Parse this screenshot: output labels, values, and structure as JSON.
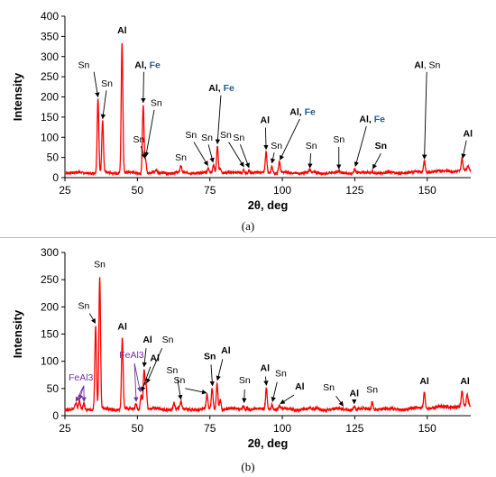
{
  "chart_data": [
    {
      "type": "line",
      "panel_label": "(a)",
      "xlabel": "2θ, deg",
      "ylabel": "Intensity",
      "xlim": [
        25,
        165
      ],
      "ylim": [
        0,
        400
      ],
      "xticks": [
        25,
        50,
        75,
        100,
        125,
        150
      ],
      "yticks": [
        0,
        50,
        100,
        150,
        200,
        250,
        300,
        350,
        400
      ],
      "grid": false,
      "line_color": "#ff0000",
      "baseline": 12,
      "peaks": [
        {
          "x": 36.4,
          "y": 195
        },
        {
          "x": 38.0,
          "y": 140
        },
        {
          "x": 44.7,
          "y": 335
        },
        {
          "x": 52.0,
          "y": 180
        },
        {
          "x": 52.8,
          "y": 45
        },
        {
          "x": 56.5,
          "y": 18
        },
        {
          "x": 65.0,
          "y": 28
        },
        {
          "x": 74.5,
          "y": 22
        },
        {
          "x": 76.3,
          "y": 32
        },
        {
          "x": 77.6,
          "y": 78
        },
        {
          "x": 78.6,
          "y": 25
        },
        {
          "x": 86.7,
          "y": 20
        },
        {
          "x": 88.5,
          "y": 18
        },
        {
          "x": 94.4,
          "y": 65
        },
        {
          "x": 96.4,
          "y": 30
        },
        {
          "x": 99.0,
          "y": 38
        },
        {
          "x": 109.5,
          "y": 18
        },
        {
          "x": 119.5,
          "y": 16
        },
        {
          "x": 125.0,
          "y": 22
        },
        {
          "x": 131.0,
          "y": 16
        },
        {
          "x": 149.0,
          "y": 40
        },
        {
          "x": 162.0,
          "y": 42
        },
        {
          "x": 164.0,
          "y": 22
        }
      ],
      "annotations": [
        {
          "parts": [
            {
              "t": "Sn",
              "b": false,
              "c": "#000000"
            }
          ],
          "text_x": 31.5,
          "text_y": 272,
          "arrow": [
            35.0,
            262,
            36.4,
            200
          ]
        },
        {
          "parts": [
            {
              "t": "Sn",
              "b": false,
              "c": "#000000"
            }
          ],
          "text_x": 39.5,
          "text_y": 226,
          "arrow": [
            39.3,
            216,
            38.0,
            146
          ]
        },
        {
          "parts": [
            {
              "t": "Al",
              "b": true,
              "c": "#000000"
            }
          ],
          "text_x": 44.7,
          "text_y": 358,
          "arrow": null
        },
        {
          "parts": [
            {
              "t": "Al",
              "b": true,
              "c": "#000000"
            },
            {
              "t": ", ",
              "b": true,
              "c": "#000000"
            },
            {
              "t": "Fe",
              "b": true,
              "c": "#1f5c9a"
            }
          ],
          "text_x": 53.5,
          "text_y": 272,
          "arrow": [
            52.2,
            262,
            52.0,
            186
          ]
        },
        {
          "parts": [
            {
              "t": "Sn",
              "b": false,
              "c": "#000000"
            }
          ],
          "text_x": 56.5,
          "text_y": 178,
          "arrow": [
            55.8,
            168,
            52.9,
            52
          ]
        },
        {
          "parts": [
            {
              "t": "Sn",
              "b": false,
              "c": "#000000"
            }
          ],
          "text_x": 50.5,
          "text_y": 87,
          "arrow": [
            51.2,
            78,
            52.6,
            48
          ]
        },
        {
          "parts": [
            {
              "t": "Sn",
              "b": false,
              "c": "#000000"
            }
          ],
          "text_x": 65.0,
          "text_y": 43,
          "arrow": null
        },
        {
          "parts": [
            {
              "t": "Sn",
              "b": false,
              "c": "#000000"
            }
          ],
          "text_x": 68.5,
          "text_y": 98,
          "arrow": [
            69.5,
            88,
            74.3,
            30
          ]
        },
        {
          "parts": [
            {
              "t": "Sn",
              "b": false,
              "c": "#000000"
            }
          ],
          "text_x": 74.0,
          "text_y": 92,
          "arrow": [
            74.5,
            82,
            76.1,
            38
          ]
        },
        {
          "parts": [
            {
              "t": "Al",
              "b": true,
              "c": "#000000"
            },
            {
              "t": ", ",
              "b": true,
              "c": "#000000"
            },
            {
              "t": "Fe",
              "b": true,
              "c": "#1f5c9a"
            }
          ],
          "text_x": 79.0,
          "text_y": 214,
          "arrow": [
            78.8,
            204,
            77.6,
            84
          ]
        },
        {
          "parts": [
            {
              "t": "Sn",
              "b": false,
              "c": "#000000"
            }
          ],
          "text_x": 80.5,
          "text_y": 98,
          "arrow": [
            81.5,
            88,
            86.7,
            27
          ]
        },
        {
          "parts": [
            {
              "t": "Sn",
              "b": false,
              "c": "#000000"
            }
          ],
          "text_x": 85.0,
          "text_y": 92,
          "arrow": [
            85.5,
            82,
            88.5,
            25
          ]
        },
        {
          "parts": [
            {
              "t": "Al",
              "b": true,
              "c": "#000000"
            }
          ],
          "text_x": 94.0,
          "text_y": 135,
          "arrow": [
            94.2,
            124,
            94.4,
            70
          ]
        },
        {
          "parts": [
            {
              "t": "Sn",
              "b": false,
              "c": "#000000"
            }
          ],
          "text_x": 98.0,
          "text_y": 72,
          "arrow": [
            97.2,
            62,
            96.4,
            36
          ]
        },
        {
          "parts": [
            {
              "t": "Al",
              "b": true,
              "c": "#000000"
            },
            {
              "t": ", ",
              "b": true,
              "c": "#000000"
            },
            {
              "t": "Fe",
              "b": true,
              "c": "#1f5c9a"
            }
          ],
          "text_x": 107.0,
          "text_y": 155,
          "arrow": [
            106.0,
            145,
            99.2,
            44
          ]
        },
        {
          "parts": [
            {
              "t": "Sn",
              "b": false,
              "c": "#000000"
            }
          ],
          "text_x": 110.0,
          "text_y": 72,
          "arrow": [
            109.8,
            60,
            109.5,
            24
          ]
        },
        {
          "parts": [
            {
              "t": "Sn",
              "b": false,
              "c": "#000000"
            }
          ],
          "text_x": 119.5,
          "text_y": 87,
          "arrow": [
            119.5,
            76,
            119.5,
            22
          ]
        },
        {
          "parts": [
            {
              "t": "Al",
              "b": true,
              "c": "#000000"
            },
            {
              "t": ", ",
              "b": true,
              "c": "#000000"
            },
            {
              "t": "Fe",
              "b": true,
              "c": "#1f5c9a"
            }
          ],
          "text_x": 131.0,
          "text_y": 137,
          "arrow": [
            129.0,
            127,
            125.2,
            28
          ]
        },
        {
          "parts": [
            {
              "t": "Sn",
              "b": true,
              "c": "#000000"
            }
          ],
          "text_x": 134.0,
          "text_y": 72,
          "arrow": [
            134.0,
            60,
            131.2,
            22
          ]
        },
        {
          "parts": [
            {
              "t": "Al",
              "b": true,
              "c": "#000000"
            },
            {
              "t": ", Sn",
              "b": false,
              "c": "#000000"
            }
          ],
          "text_x": 150.0,
          "text_y": 272,
          "arrow": [
            149.8,
            262,
            149.0,
            46
          ]
        },
        {
          "parts": [
            {
              "t": "Al",
              "b": true,
              "c": "#000000"
            }
          ],
          "text_x": 164.0,
          "text_y": 102,
          "arrow": [
            163.5,
            92,
            162.2,
            48
          ]
        }
      ]
    },
    {
      "type": "line",
      "panel_label": "(b)",
      "xlabel": "2θ, deg",
      "ylabel": "Intensity",
      "xlim": [
        25,
        165
      ],
      "ylim": [
        0,
        300
      ],
      "xticks": [
        25,
        50,
        75,
        100,
        125,
        150
      ],
      "yticks": [
        0,
        50,
        100,
        150,
        200,
        250,
        300
      ],
      "grid": false,
      "line_color": "#ff0000",
      "baseline": 12,
      "peaks": [
        {
          "x": 28.8,
          "y": 22
        },
        {
          "x": 30.0,
          "y": 26
        },
        {
          "x": 31.5,
          "y": 22
        },
        {
          "x": 35.6,
          "y": 165
        },
        {
          "x": 37.0,
          "y": 255
        },
        {
          "x": 44.8,
          "y": 142
        },
        {
          "x": 49.5,
          "y": 22
        },
        {
          "x": 51.3,
          "y": 40
        },
        {
          "x": 52.3,
          "y": 85
        },
        {
          "x": 53.0,
          "y": 55
        },
        {
          "x": 62.6,
          "y": 24
        },
        {
          "x": 65.0,
          "y": 25
        },
        {
          "x": 74.0,
          "y": 38
        },
        {
          "x": 75.8,
          "y": 50
        },
        {
          "x": 77.5,
          "y": 60
        },
        {
          "x": 78.6,
          "y": 30
        },
        {
          "x": 86.5,
          "y": 20
        },
        {
          "x": 88.0,
          "y": 16
        },
        {
          "x": 94.5,
          "y": 52
        },
        {
          "x": 96.4,
          "y": 22
        },
        {
          "x": 99.0,
          "y": 18
        },
        {
          "x": 112.0,
          "y": 14
        },
        {
          "x": 124.8,
          "y": 18
        },
        {
          "x": 131.0,
          "y": 26
        },
        {
          "x": 149.0,
          "y": 42
        },
        {
          "x": 162.0,
          "y": 40
        },
        {
          "x": 163.8,
          "y": 32
        }
      ],
      "annotations": [
        {
          "parts": [
            {
              "t": "Sn",
              "b": false,
              "c": "#000000"
            }
          ],
          "text_x": 31.5,
          "text_y": 196,
          "arrow": [
            33.5,
            188,
            35.5,
            170
          ]
        },
        {
          "parts": [
            {
              "t": "Sn",
              "b": false,
              "c": "#000000"
            }
          ],
          "text_x": 37.0,
          "text_y": 273,
          "arrow": null
        },
        {
          "parts": [
            {
              "t": "Al",
              "b": true,
              "c": "#000000"
            }
          ],
          "text_x": 44.8,
          "text_y": 158,
          "arrow": null
        },
        {
          "parts": [
            {
              "t": "FeAl3",
              "b": false,
              "c": "#7030a0"
            }
          ],
          "text_x": 30.5,
          "text_y": 65,
          "arrow": null
        },
        {
          "parts": [
            {
              "t": "FeAl3",
              "b": false,
              "c": "#7030a0"
            }
          ],
          "text_x": 48.0,
          "text_y": 106,
          "arrow": null
        },
        {
          "parts": [
            {
              "t": "Al",
              "b": true,
              "c": "#000000"
            }
          ],
          "text_x": 53.5,
          "text_y": 134,
          "arrow": [
            53.0,
            124,
            52.3,
            90
          ]
        },
        {
          "parts": [
            {
              "t": "Sn",
              "b": false,
              "c": "#000000"
            }
          ],
          "text_x": 60.5,
          "text_y": 134,
          "arrow": [
            58.5,
            124,
            53.2,
            60
          ]
        },
        {
          "parts": [
            {
              "t": "Al",
              "b": true,
              "c": "#000000"
            }
          ],
          "text_x": 56.0,
          "text_y": 100,
          "arrow": [
            54.5,
            90,
            51.5,
            45
          ]
        },
        {
          "parts": [
            {
              "t": "Sn",
              "b": false,
              "c": "#000000"
            }
          ],
          "text_x": 62.0,
          "text_y": 78,
          "arrow": [
            63.8,
            68,
            65.0,
            30
          ]
        },
        {
          "parts": [
            {
              "t": "Sn",
              "b": false,
              "c": "#000000"
            }
          ],
          "text_x": 64.5,
          "text_y": 60,
          "arrow": [
            66.5,
            50,
            73.8,
            42
          ]
        },
        {
          "parts": [
            {
              "t": "Sn",
              "b": true,
              "c": "#000000"
            }
          ],
          "text_x": 75.0,
          "text_y": 104,
          "arrow": [
            75.4,
            94,
            75.9,
            55
          ]
        },
        {
          "parts": [
            {
              "t": "Al",
              "b": true,
              "c": "#000000"
            }
          ],
          "text_x": 80.5,
          "text_y": 114,
          "arrow": [
            79.4,
            104,
            77.6,
            65
          ]
        },
        {
          "parts": [
            {
              "t": "Sn",
              "b": false,
              "c": "#000000"
            }
          ],
          "text_x": 87.0,
          "text_y": 60,
          "arrow": [
            87.0,
            48,
            86.8,
            24
          ]
        },
        {
          "parts": [
            {
              "t": "Al",
              "b": true,
              "c": "#000000"
            }
          ],
          "text_x": 94.0,
          "text_y": 82,
          "arrow": [
            94.2,
            72,
            94.5,
            56
          ]
        },
        {
          "parts": [
            {
              "t": "Sn",
              "b": false,
              "c": "#000000"
            }
          ],
          "text_x": 99.5,
          "text_y": 72,
          "arrow": [
            98.2,
            62,
            96.6,
            26
          ]
        },
        {
          "parts": [
            {
              "t": "Al",
              "b": true,
              "c": "#000000"
            }
          ],
          "text_x": 106.0,
          "text_y": 48,
          "arrow": [
            104.0,
            38,
            99.3,
            22
          ]
        },
        {
          "parts": [
            {
              "t": "Sn",
              "b": false,
              "c": "#000000"
            }
          ],
          "text_x": 116.0,
          "text_y": 46,
          "arrow": [
            118.5,
            36,
            121.0,
            18
          ]
        },
        {
          "parts": [
            {
              "t": "Al",
              "b": true,
              "c": "#000000"
            }
          ],
          "text_x": 124.8,
          "text_y": 36,
          "arrow": [
            124.8,
            28,
            124.8,
            22
          ]
        },
        {
          "parts": [
            {
              "t": "Sn",
              "b": false,
              "c": "#000000"
            }
          ],
          "text_x": 131.0,
          "text_y": 42,
          "arrow": null
        },
        {
          "parts": [
            {
              "t": "Al",
              "b": true,
              "c": "#000000"
            }
          ],
          "text_x": 149.0,
          "text_y": 58,
          "arrow": null
        },
        {
          "parts": [
            {
              "t": "Al",
              "b": true,
              "c": "#000000"
            }
          ],
          "text_x": 163.0,
          "text_y": 58,
          "arrow": null
        }
      ],
      "multi_arrows": [
        {
          "from": [
            31.5,
            55
          ],
          "to": [
            [
              28.8,
              26
            ],
            [
              30.0,
              30
            ],
            [
              31.6,
              26
            ]
          ],
          "color": "#7030a0"
        },
        {
          "from": [
            49.0,
            96
          ],
          "to": [
            [
              51.0,
              44
            ],
            [
              49.6,
              26
            ]
          ],
          "color": "#7030a0"
        }
      ]
    }
  ]
}
